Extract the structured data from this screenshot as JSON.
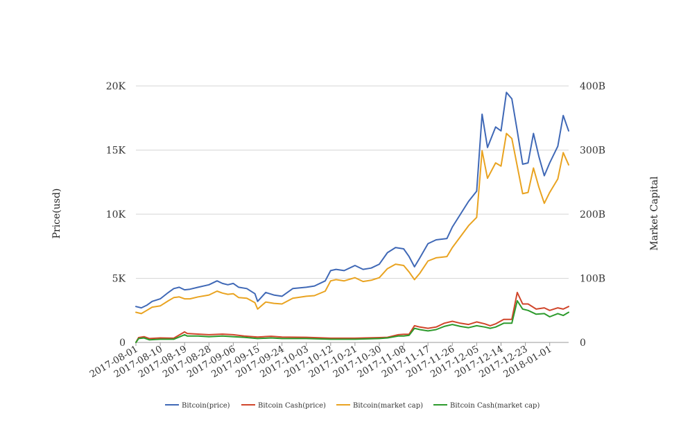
{
  "chart_data": {
    "type": "line",
    "left_axis_label": "Price(usd)",
    "right_axis_label": "Market Capital",
    "left_ticks": [
      "0",
      "5K",
      "10K",
      "15K",
      "20K"
    ],
    "right_ticks": [
      "0",
      "100B",
      "200B",
      "300B",
      "400B"
    ],
    "ylim_left": [
      0,
      20000
    ],
    "ylim_right": [
      0,
      400
    ],
    "right_unit": "B",
    "x_ticks": [
      "2017-08-01",
      "2017-08-10",
      "2017-08-19",
      "2017-08-28",
      "2017-09-06",
      "2017-09-15",
      "2017-09-24",
      "2017-10-03",
      "2017-10-12",
      "2017-10-21",
      "2017-10-30",
      "2017-11-08",
      "2017-11-17",
      "2017-11-26",
      "2017-12-05",
      "2017-12-14",
      "2017-12-23",
      "2018-01-01"
    ],
    "grid": true,
    "legend_position": "bottom",
    "series": [
      {
        "name": "Bitcoin(price)",
        "axis": "left",
        "color": "#3f68b6",
        "x": [
          "2017-08-01",
          "2017-08-03",
          "2017-08-05",
          "2017-08-07",
          "2017-08-10",
          "2017-08-13",
          "2017-08-15",
          "2017-08-17",
          "2017-08-19",
          "2017-08-21",
          "2017-08-24",
          "2017-08-28",
          "2017-08-31",
          "2017-09-02",
          "2017-09-04",
          "2017-09-06",
          "2017-09-08",
          "2017-09-11",
          "2017-09-14",
          "2017-09-15",
          "2017-09-18",
          "2017-09-21",
          "2017-09-24",
          "2017-09-28",
          "2017-10-03",
          "2017-10-06",
          "2017-10-10",
          "2017-10-12",
          "2017-10-14",
          "2017-10-17",
          "2017-10-21",
          "2017-10-24",
          "2017-10-27",
          "2017-10-30",
          "2017-11-02",
          "2017-11-05",
          "2017-11-08",
          "2017-11-10",
          "2017-11-12",
          "2017-11-14",
          "2017-11-17",
          "2017-11-20",
          "2017-11-24",
          "2017-11-26",
          "2017-11-29",
          "2017-12-02",
          "2017-12-05",
          "2017-12-07",
          "2017-12-09",
          "2017-12-12",
          "2017-12-14",
          "2017-12-16",
          "2017-12-18",
          "2017-12-20",
          "2017-12-22",
          "2017-12-24",
          "2017-12-26",
          "2017-12-28",
          "2017-12-30",
          "2018-01-01",
          "2018-01-04",
          "2018-01-06",
          "2018-01-08"
        ],
        "values": [
          2800,
          2700,
          2900,
          3200,
          3400,
          3900,
          4200,
          4300,
          4100,
          4150,
          4300,
          4500,
          4800,
          4600,
          4500,
          4600,
          4300,
          4200,
          3800,
          3200,
          3900,
          3700,
          3600,
          4200,
          4300,
          4400,
          4800,
          5600,
          5700,
          5600,
          6000,
          5700,
          5800,
          6100,
          7000,
          7400,
          7300,
          6700,
          5900,
          6600,
          7700,
          8000,
          8100,
          9000,
          10000,
          11000,
          11800,
          17800,
          15200,
          16800,
          16500,
          19500,
          19000,
          16500,
          13900,
          14000,
          16300,
          14500,
          13000,
          14000,
          15300,
          17700,
          16500
        ]
      },
      {
        "name": "Bitcoin Cash(price)",
        "axis": "left",
        "color": "#d0452a",
        "x": [
          "2017-08-01",
          "2017-08-02",
          "2017-08-04",
          "2017-08-06",
          "2017-08-10",
          "2017-08-15",
          "2017-08-19",
          "2017-08-20",
          "2017-08-24",
          "2017-08-28",
          "2017-09-02",
          "2017-09-06",
          "2017-09-10",
          "2017-09-15",
          "2017-09-20",
          "2017-09-24",
          "2017-10-03",
          "2017-10-12",
          "2017-10-21",
          "2017-10-30",
          "2017-11-02",
          "2017-11-06",
          "2017-11-08",
          "2017-11-10",
          "2017-11-12",
          "2017-11-14",
          "2017-11-17",
          "2017-11-20",
          "2017-11-23",
          "2017-11-26",
          "2017-11-29",
          "2017-12-02",
          "2017-12-05",
          "2017-12-08",
          "2017-12-10",
          "2017-12-12",
          "2017-12-15",
          "2017-12-18",
          "2017-12-20",
          "2017-12-22",
          "2017-12-24",
          "2017-12-27",
          "2017-12-30",
          "2018-01-01",
          "2018-01-04",
          "2018-01-06",
          "2018-01-08"
        ],
        "values": [
          0,
          380,
          450,
          300,
          350,
          330,
          820,
          700,
          650,
          600,
          650,
          600,
          500,
          420,
          480,
          420,
          400,
          330,
          330,
          380,
          400,
          600,
          640,
          640,
          1300,
          1200,
          1100,
          1200,
          1500,
          1650,
          1500,
          1400,
          1600,
          1450,
          1300,
          1450,
          1800,
          1800,
          3900,
          3000,
          3000,
          2600,
          2700,
          2500,
          2700,
          2600,
          2800
        ]
      },
      {
        "name": "Bitcoin(market cap)",
        "axis": "right",
        "color": "#e9a320",
        "x": [
          "2017-08-01",
          "2017-08-03",
          "2017-08-05",
          "2017-08-07",
          "2017-08-10",
          "2017-08-13",
          "2017-08-15",
          "2017-08-17",
          "2017-08-19",
          "2017-08-21",
          "2017-08-24",
          "2017-08-28",
          "2017-08-31",
          "2017-09-02",
          "2017-09-04",
          "2017-09-06",
          "2017-09-08",
          "2017-09-11",
          "2017-09-14",
          "2017-09-15",
          "2017-09-18",
          "2017-09-21",
          "2017-09-24",
          "2017-09-28",
          "2017-10-03",
          "2017-10-06",
          "2017-10-10",
          "2017-10-12",
          "2017-10-14",
          "2017-10-17",
          "2017-10-21",
          "2017-10-24",
          "2017-10-27",
          "2017-10-30",
          "2017-11-02",
          "2017-11-05",
          "2017-11-08",
          "2017-11-10",
          "2017-11-12",
          "2017-11-14",
          "2017-11-17",
          "2017-11-20",
          "2017-11-24",
          "2017-11-26",
          "2017-11-29",
          "2017-12-02",
          "2017-12-05",
          "2017-12-07",
          "2017-12-09",
          "2017-12-12",
          "2017-12-14",
          "2017-12-16",
          "2017-12-18",
          "2017-12-20",
          "2017-12-22",
          "2017-12-24",
          "2017-12-26",
          "2017-12-28",
          "2017-12-30",
          "2018-01-01",
          "2018-01-04",
          "2018-01-06",
          "2018-01-08"
        ],
        "values": [
          47,
          45,
          50,
          55,
          57,
          65,
          70,
          71,
          68,
          68,
          71,
          74,
          80,
          77,
          75,
          76,
          70,
          69,
          62,
          52,
          63,
          61,
          60,
          69,
          72,
          73,
          80,
          96,
          98,
          96,
          101,
          95,
          97,
          101,
          115,
          122,
          120,
          110,
          98,
          108,
          127,
          132,
          134,
          148,
          165,
          182,
          195,
          299,
          256,
          280,
          275,
          326,
          318,
          275,
          232,
          234,
          272,
          242,
          217,
          234,
          255,
          296,
          277
        ]
      },
      {
        "name": "Bitcoin Cash(market cap)",
        "axis": "right",
        "color": "#2c9a2c",
        "x": [
          "2017-08-01",
          "2017-08-02",
          "2017-08-04",
          "2017-08-06",
          "2017-08-10",
          "2017-08-15",
          "2017-08-19",
          "2017-08-20",
          "2017-08-24",
          "2017-08-28",
          "2017-09-02",
          "2017-09-06",
          "2017-09-10",
          "2017-09-15",
          "2017-09-20",
          "2017-09-24",
          "2017-10-03",
          "2017-10-12",
          "2017-10-21",
          "2017-10-30",
          "2017-11-02",
          "2017-11-06",
          "2017-11-08",
          "2017-11-10",
          "2017-11-12",
          "2017-11-14",
          "2017-11-17",
          "2017-11-20",
          "2017-11-23",
          "2017-11-26",
          "2017-11-29",
          "2017-12-02",
          "2017-12-05",
          "2017-12-08",
          "2017-12-10",
          "2017-12-12",
          "2017-12-15",
          "2017-12-18",
          "2017-12-20",
          "2017-12-22",
          "2017-12-24",
          "2017-12-27",
          "2017-12-30",
          "2018-01-01",
          "2018-01-04",
          "2018-01-06",
          "2018-01-08"
        ],
        "values": [
          0,
          6,
          7,
          4,
          5,
          5,
          12,
          10,
          10,
          9,
          10,
          9,
          8,
          6,
          7,
          6,
          6,
          5,
          5,
          6,
          7,
          10,
          10,
          11,
          22,
          20,
          18,
          20,
          25,
          28,
          25,
          23,
          26,
          24,
          22,
          24,
          30,
          30,
          65,
          52,
          50,
          44,
          45,
          40,
          45,
          42,
          47
        ]
      }
    ]
  }
}
